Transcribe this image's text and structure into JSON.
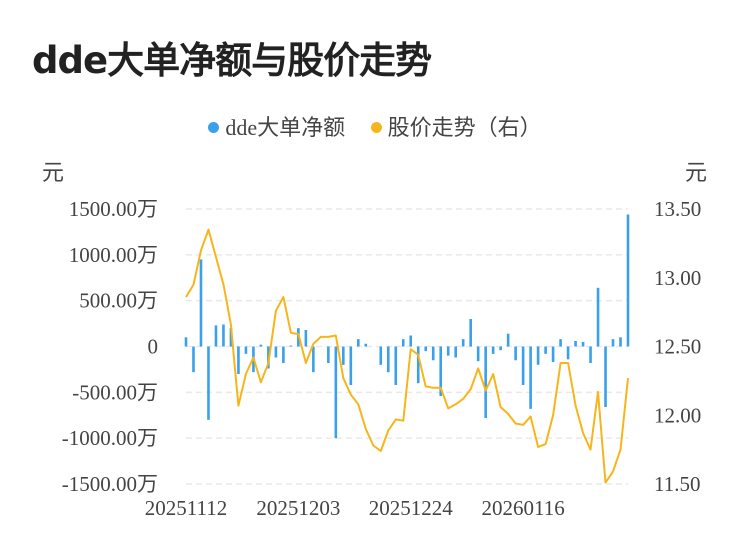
{
  "chart_data": {
    "type": "bar+line",
    "title": "dde大单净额与股价走势",
    "legend": [
      {
        "name": "dde大单净额",
        "color": "#3aa0ea"
      },
      {
        "name": "股价走势（右）",
        "color": "#f7b51c"
      }
    ],
    "y_left_unit": "元",
    "y_right_unit": "元",
    "y_left_ticks": [
      {
        "value": 1500,
        "label": "1500.00万"
      },
      {
        "value": 1000,
        "label": "1000.00万"
      },
      {
        "value": 500,
        "label": "500.00万"
      },
      {
        "value": 0,
        "label": "0"
      },
      {
        "value": -500,
        "label": "-500.00万"
      },
      {
        "value": -1000,
        "label": "-1000.00万"
      },
      {
        "value": -1500,
        "label": "-1500.00万"
      }
    ],
    "y_left_range": [
      -1500,
      1500
    ],
    "y_right_ticks": [
      {
        "value": 13.5,
        "label": "13.50"
      },
      {
        "value": 13.0,
        "label": "13.00"
      },
      {
        "value": 12.5,
        "label": "12.50"
      },
      {
        "value": 12.0,
        "label": "12.00"
      },
      {
        "value": 11.5,
        "label": "11.50"
      }
    ],
    "y_right_range": [
      11.5,
      13.5
    ],
    "x_tick_labels": [
      {
        "index": 0,
        "label": "20251112"
      },
      {
        "index": 15,
        "label": "20251203"
      },
      {
        "index": 30,
        "label": "20251224"
      },
      {
        "index": 45,
        "label": "20260116"
      }
    ],
    "bar_values": [
      100,
      -280,
      950,
      -800,
      230,
      240,
      200,
      -300,
      -80,
      -280,
      20,
      -240,
      -120,
      -180,
      10,
      200,
      180,
      -280,
      0,
      -180,
      -1000,
      -200,
      -420,
      80,
      30,
      0,
      -200,
      -280,
      -420,
      80,
      120,
      -400,
      -50,
      -150,
      -540,
      -100,
      -120,
      80,
      300,
      -160,
      -780,
      -80,
      -40,
      140,
      -150,
      -420,
      -680,
      -200,
      -80,
      -170,
      80,
      -140,
      60,
      50,
      -180,
      640,
      -660,
      80,
      100,
      1440
    ],
    "price_values": [
      12.86,
      12.95,
      13.2,
      13.35,
      13.15,
      12.95,
      12.66,
      12.07,
      12.3,
      12.42,
      12.24,
      12.38,
      12.76,
      12.86,
      12.6,
      12.59,
      12.38,
      12.52,
      12.57,
      12.57,
      12.58,
      12.27,
      12.15,
      12.08,
      11.9,
      11.78,
      11.74,
      11.89,
      11.97,
      11.96,
      12.48,
      12.44,
      12.21,
      12.2,
      12.2,
      12.05,
      12.08,
      12.12,
      12.19,
      12.34,
      12.18,
      12.3,
      12.06,
      12.01,
      11.94,
      11.93,
      11.99,
      11.77,
      11.79,
      12.0,
      12.38,
      12.38,
      12.07,
      11.87,
      11.75,
      12.17,
      11.51,
      11.59,
      11.75,
      12.27
    ]
  }
}
